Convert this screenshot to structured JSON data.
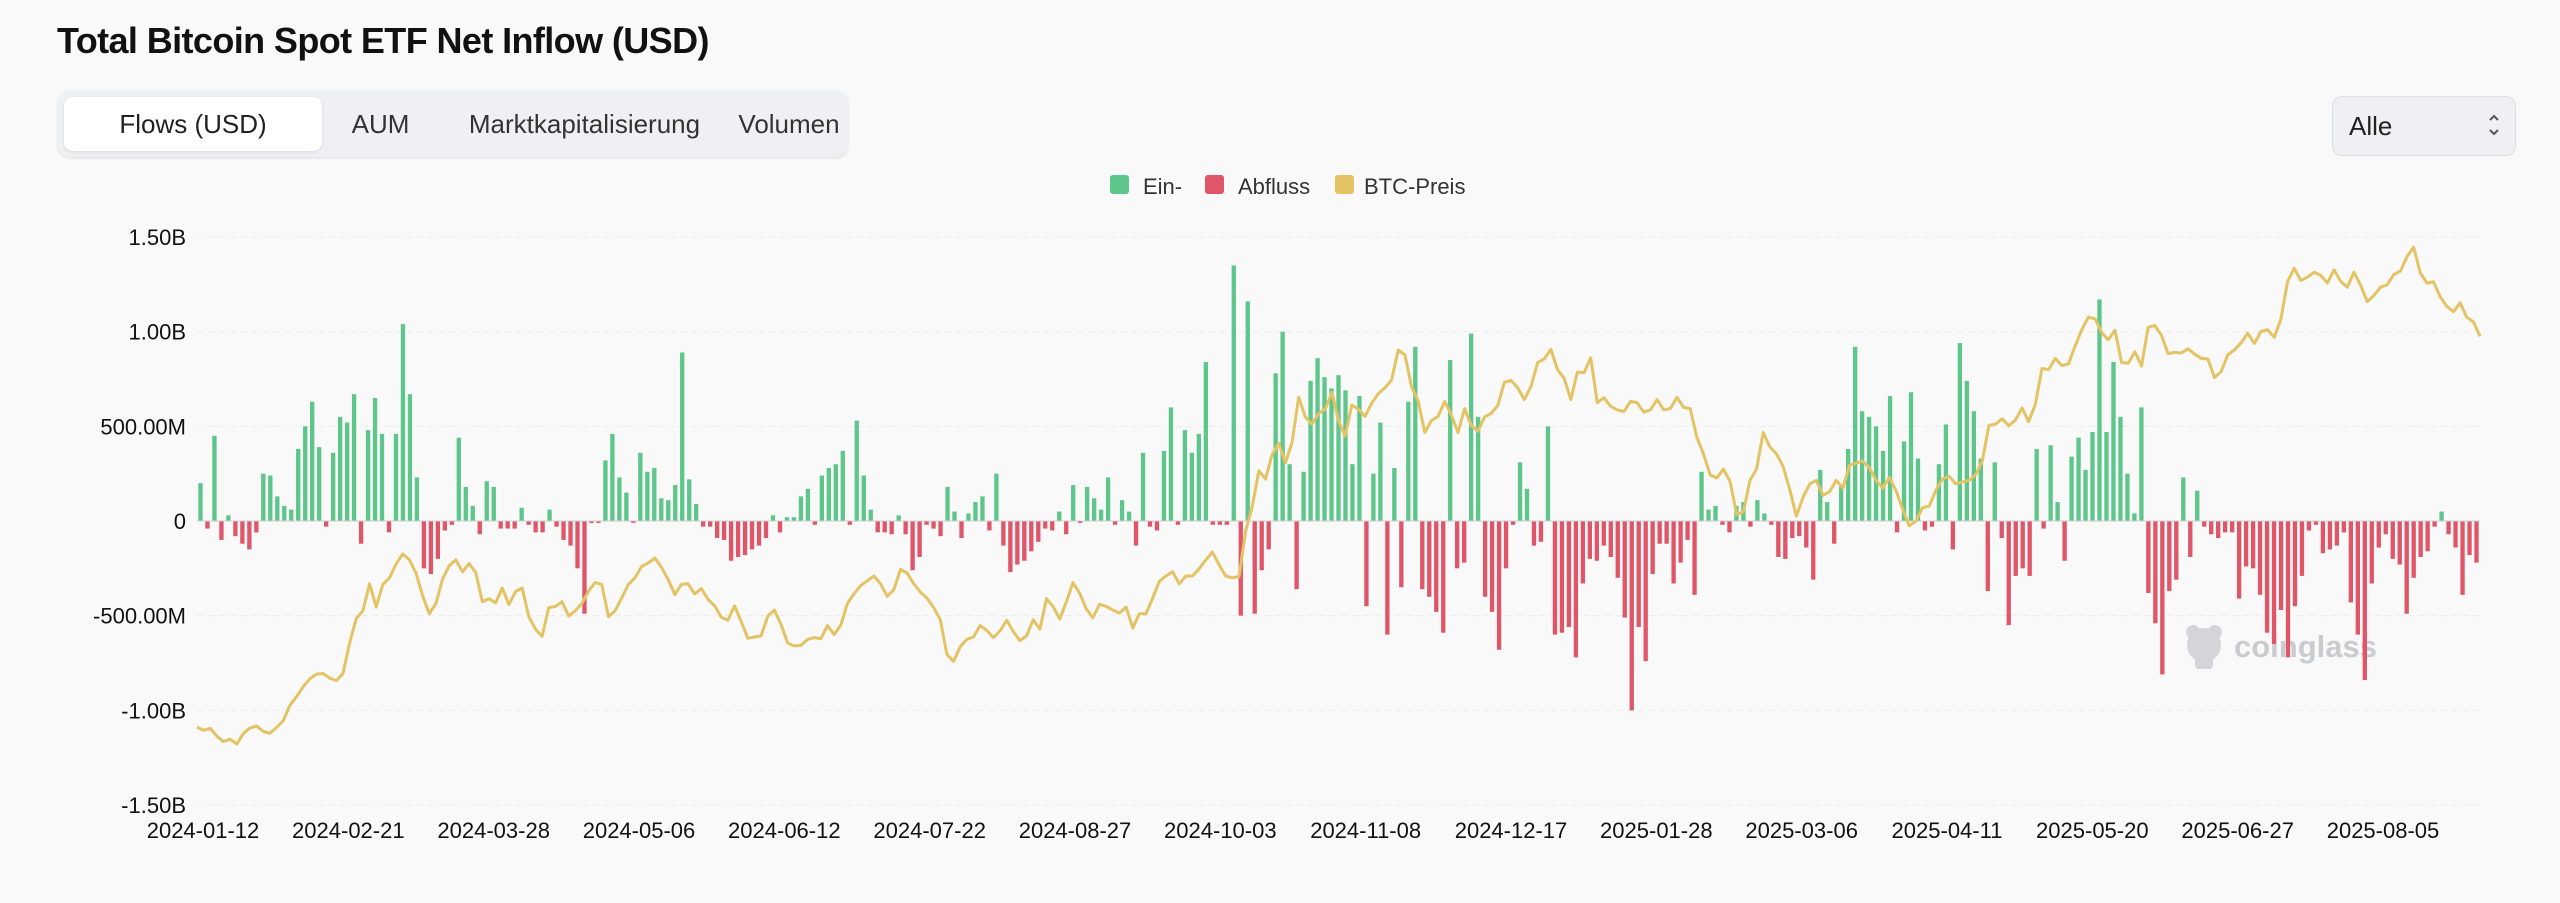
{
  "title": "Total Bitcoin Spot ETF Net Inflow (USD)",
  "tabs": [
    {
      "label": "Flows (USD)",
      "active": true
    },
    {
      "label": "AUM",
      "active": false
    },
    {
      "label": "Marktkapitalisierung",
      "active": false
    },
    {
      "label": "Volumen",
      "active": false
    }
  ],
  "range_select": {
    "value": "Alle"
  },
  "watermark": "coinglass",
  "colors": {
    "inflow": "#5ec68b",
    "outflow": "#e05669",
    "price": "#e3c363"
  },
  "chart_data": {
    "type": "bar",
    "legend": [
      {
        "name": "Ein-",
        "color": "#5ec68b"
      },
      {
        "name": "Abfluss",
        "color": "#e05669"
      },
      {
        "name": "BTC-Preis",
        "color": "#e3c363"
      }
    ],
    "legend_position": "top-center",
    "y_ticks": [
      "1.50B",
      "1.00B",
      "500.00M",
      "0",
      "-500.00M",
      "-1.00B",
      "-1.50B"
    ],
    "ylim": [
      -1500000000,
      1500000000
    ],
    "x_ticks": [
      "2024-01-12",
      "2024-02-21",
      "2024-03-28",
      "2024-05-06",
      "2024-06-12",
      "2024-07-22",
      "2024-08-27",
      "2024-10-03",
      "2024-11-08",
      "2024-12-17",
      "2025-01-28",
      "2025-03-06",
      "2025-04-11",
      "2025-05-20",
      "2025-06-27",
      "2025-08-05"
    ],
    "grid": true,
    "series": [
      {
        "name": "Ein- / Abfluss",
        "type": "bar",
        "unit": "M USD",
        "values": [
          200,
          -40,
          450,
          -100,
          30,
          -80,
          -120,
          -150,
          -60,
          250,
          240,
          130,
          80,
          60,
          380,
          500,
          630,
          390,
          -30,
          360,
          550,
          520,
          670,
          -120,
          480,
          650,
          460,
          -60,
          460,
          1040,
          670,
          230,
          -250,
          -280,
          -200,
          -50,
          -20,
          440,
          180,
          80,
          -70,
          210,
          180,
          -40,
          -40,
          -40,
          70,
          -20,
          -60,
          -60,
          60,
          -30,
          -100,
          -130,
          -250,
          -490,
          -10,
          -10,
          320,
          460,
          230,
          150,
          -10,
          360,
          260,
          280,
          120,
          110,
          190,
          890,
          220,
          90,
          -30,
          -30,
          -90,
          -100,
          -210,
          -190,
          -180,
          -150,
          -130,
          -90,
          30,
          -60,
          20,
          20,
          130,
          170,
          -20,
          240,
          280,
          300,
          370,
          -20,
          530,
          240,
          60,
          -60,
          -60,
          -70,
          30,
          -70,
          -260,
          -190,
          -20,
          -40,
          -80,
          180,
          50,
          -90,
          40,
          100,
          130,
          -50,
          250,
          -130,
          -270,
          -230,
          -210,
          -160,
          -110,
          -40,
          -50,
          50,
          -70,
          190,
          -10,
          180,
          120,
          60,
          230,
          -20,
          110,
          50,
          -130,
          360,
          -30,
          -50,
          370,
          600,
          -20,
          480,
          360,
          460,
          840,
          -20,
          -20,
          -20,
          1350,
          -500,
          1160,
          -490,
          -260,
          -150,
          780,
          1000,
          300,
          -360,
          260,
          740,
          860,
          760,
          700,
          770,
          690,
          300,
          660,
          -450,
          250,
          520,
          -600,
          280,
          -350,
          630,
          920,
          -360,
          -400,
          -480,
          -590,
          850,
          -250,
          -220,
          990,
          550,
          -400,
          -480,
          -680,
          -250,
          -20,
          310,
          170,
          -130,
          -110,
          500,
          -600,
          -590,
          -560,
          -720,
          -330,
          -200,
          -210,
          -130,
          -190,
          -300,
          -510,
          -1000,
          -560,
          -740,
          -280,
          -120,
          -120,
          -330,
          -220,
          -100,
          -390,
          260,
          60,
          80,
          -20,
          -60,
          80,
          100,
          -30,
          110,
          40,
          -20,
          -190,
          -200,
          -90,
          -80,
          -140,
          -310,
          270,
          100,
          -120,
          180,
          380,
          920,
          580,
          550,
          500,
          370,
          660,
          -60,
          420,
          680,
          330,
          -50,
          -30,
          300,
          510,
          -150,
          940,
          740,
          580,
          330,
          -370,
          310,
          -90,
          -550,
          -290,
          -250,
          -290,
          380,
          -40,
          400,
          100,
          -210,
          340,
          440,
          270,
          470,
          1170,
          470,
          840,
          550,
          250,
          40,
          600,
          -380,
          -540,
          -810,
          -370,
          -310,
          230,
          -190,
          160,
          -30,
          -70,
          -90,
          -60,
          -60,
          -410,
          -240,
          -250,
          -390,
          -590,
          -650,
          -470,
          -720,
          -450,
          -290,
          -50,
          -20,
          -170,
          -150,
          -130,
          -60,
          -430,
          -600,
          -840,
          -330,
          -140,
          -70,
          -200,
          -230,
          -490,
          -300,
          -190,
          -160,
          -30,
          50,
          -70,
          -140,
          -390,
          -180,
          -220
        ]
      },
      {
        "name": "BTC-Preis",
        "type": "line",
        "unit": "USD",
        "values": [
          43000,
          42500,
          42800,
          41500,
          40600,
          41000,
          40200,
          42000,
          42900,
          43200,
          42300,
          42000,
          43000,
          44100,
          46700,
          48100,
          49800,
          51100,
          51900,
          52000,
          51200,
          50800,
          52000,
          57100,
          61200,
          62500,
          67000,
          63100,
          66900,
          68000,
          70300,
          72000,
          71000,
          68800,
          65000,
          62000,
          63700,
          67800,
          70000,
          71000,
          69000,
          70400,
          68900,
          64000,
          64500,
          63800,
          66300,
          63500,
          65700,
          66300,
          61500,
          59400,
          58200,
          63000,
          63200,
          64000,
          61600,
          62500,
          63700,
          65800,
          67200,
          66900,
          61500,
          62500,
          64600,
          66900,
          68000,
          69900,
          70500,
          71300,
          69700,
          67700,
          65200,
          66900,
          67000,
          65300,
          66200,
          64400,
          63300,
          61400,
          60900,
          63300,
          60700,
          57900,
          58100,
          58300,
          61600,
          62600,
          60200,
          57100,
          56600,
          56700,
          57700,
          58000,
          57800,
          60000,
          58500,
          60100,
          63700,
          65300,
          66700,
          67500,
          68300,
          67000,
          64900,
          66000,
          69400,
          68800,
          67000,
          65600,
          64600,
          63000,
          61000,
          55200,
          54000,
          56500,
          57700,
          58100,
          60000,
          59200,
          58000,
          59100,
          60900,
          59000,
          57500,
          58300,
          61000,
          59400,
          64500,
          63200,
          61100,
          64000,
          67200,
          65400,
          62800,
          61300,
          63600,
          63200,
          62600,
          62100,
          63100,
          59600,
          62000,
          62000,
          64600,
          67400,
          68300,
          69000,
          67000,
          68300,
          68300,
          69500,
          71000,
          72300,
          70200,
          68300,
          68000,
          68200,
          75800,
          79900,
          85900,
          84500,
          88600,
          90500,
          87200,
          90600,
          98200,
          94900,
          93700,
          95500,
          96200,
          99000,
          94300,
          91700,
          96900,
          96200,
          95000,
          97200,
          98800,
          99800,
          101100,
          106100,
          105300,
          100000,
          97600,
          92300,
          94300,
          95000,
          97500,
          95300,
          92300,
          96300,
          93500,
          92500,
          94900,
          95500,
          96800,
          100700,
          101000,
          99800,
          97800,
          100000,
          104000,
          104600,
          106200,
          102800,
          101400,
          97800,
          102400,
          102300,
          104800,
          97300,
          98100,
          96700,
          96100,
          95800,
          97500,
          97300,
          95700,
          96100,
          97800,
          96100,
          96300,
          98200,
          96500,
          96300,
          91500,
          88700,
          85200,
          84700,
          86200,
          84100,
          78600,
          79000,
          84300,
          86200,
          92300,
          89900,
          88700,
          86600,
          82700,
          78300,
          81500,
          83700,
          84300,
          81800,
          82400,
          84300,
          83000,
          86800,
          87200,
          87500,
          86400,
          84300,
          83000,
          84800,
          82600,
          79500,
          76700,
          77500,
          79700,
          80000,
          82600,
          84500,
          85000,
          83700,
          84000,
          84300,
          85200,
          87500,
          93500,
          93700,
          94600,
          93400,
          94400,
          96400,
          94100,
          97000,
          103000,
          102800,
          104700,
          103500,
          103800,
          106800,
          109500,
          111600,
          111300,
          109000,
          107800,
          109400,
          104000,
          103900,
          105800,
          103400,
          109900,
          110200,
          108600,
          105500,
          105700,
          105600,
          106300,
          105400,
          104700,
          104600,
          101500,
          102500,
          105300,
          106100,
          107300,
          108900,
          107200,
          109200,
          109500,
          108200,
          111300,
          117500,
          119800,
          117700,
          118300,
          119100,
          118600,
          117300,
          119500,
          117600,
          116600,
          119100,
          117000,
          114200,
          115200,
          116600,
          117000,
          118700,
          119300,
          121700,
          123300,
          119000,
          117300,
          117500,
          115000,
          113400,
          112500,
          114000,
          111600,
          110800,
          108400
        ]
      }
    ],
    "price_axis_hidden_range": [
      30000,
      125000
    ]
  }
}
